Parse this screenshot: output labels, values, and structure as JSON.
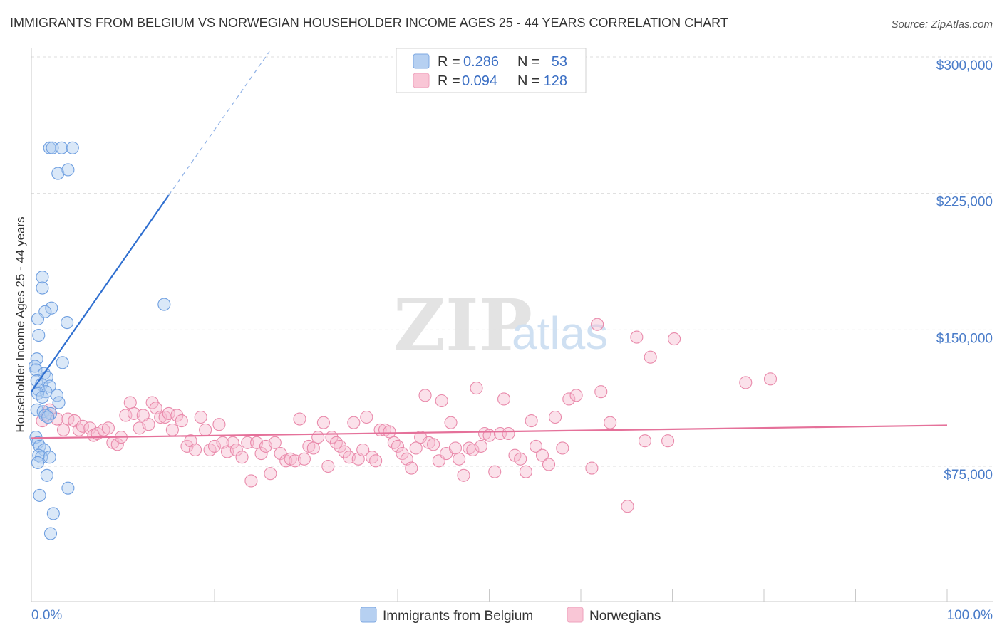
{
  "header": {
    "title": "IMMIGRANTS FROM BELGIUM VS NORWEGIAN HOUSEHOLDER INCOME AGES 25 - 44 YEARS CORRELATION CHART",
    "source": "Source: ZipAtlas.com"
  },
  "watermark": {
    "zip": "ZIP",
    "atlas": "atlas"
  },
  "legend": {
    "belgium": {
      "r_label": "R = ",
      "r_value": "0.286",
      "n_label": "N = ",
      "n_value": "53",
      "color": "#9dbfe8"
    },
    "norwegian": {
      "r_label": "R = ",
      "r_value": "0.094",
      "n_label": "N = ",
      "n_value": "128",
      "color": "#f4a8c2"
    }
  },
  "bottom_legend": {
    "belgium_label": "Immigrants from Belgium",
    "norwegian_label": "Norwegians"
  },
  "chart_data": {
    "type": "scatter",
    "title": "IMMIGRANTS FROM BELGIUM VS NORWEGIAN HOUSEHOLDER INCOME AGES 25 - 44 YEARS CORRELATION CHART",
    "xlabel": "",
    "ylabel": "Householder Income Ages 25 - 44 years",
    "xlim": [
      0,
      100
    ],
    "ylim": [
      10000,
      315000
    ],
    "x_tick_labels": [
      "0.0%",
      "100.0%"
    ],
    "y_ticks": [
      75000,
      150000,
      225000,
      300000
    ],
    "y_tick_labels": [
      "$75,000",
      "$150,000",
      "$225,000",
      "$300,000"
    ],
    "grid": true,
    "series": [
      {
        "name": "Immigrants from Belgium",
        "color": "#6f9fe0",
        "fill": "#aecbef",
        "R": 0.286,
        "N": 53,
        "trend": {
          "x0": 0.0,
          "y0": 116000,
          "x1": 15.0,
          "y1": 224000,
          "dash_to_x": 26.0,
          "dash_to_y": 303000
        },
        "points": [
          [
            2.0,
            250000
          ],
          [
            2.3,
            250000
          ],
          [
            3.3,
            250000
          ],
          [
            4.5,
            250000
          ],
          [
            2.9,
            236000
          ],
          [
            4.0,
            238000
          ],
          [
            1.2,
            179000
          ],
          [
            1.2,
            173000
          ],
          [
            2.2,
            162000
          ],
          [
            1.5,
            160000
          ],
          [
            0.7,
            156000
          ],
          [
            3.9,
            154000
          ],
          [
            0.8,
            147000
          ],
          [
            0.6,
            134000
          ],
          [
            3.4,
            132000
          ],
          [
            0.4,
            130000
          ],
          [
            0.5,
            128000
          ],
          [
            1.4,
            126000
          ],
          [
            1.7,
            124000
          ],
          [
            0.6,
            122000
          ],
          [
            1.1,
            120000
          ],
          [
            2.0,
            119000
          ],
          [
            0.8,
            117000
          ],
          [
            1.6,
            116000
          ],
          [
            0.7,
            115000
          ],
          [
            2.8,
            114000
          ],
          [
            1.2,
            113000
          ],
          [
            3.0,
            110000
          ],
          [
            0.6,
            106000
          ],
          [
            1.3,
            105000
          ],
          [
            2.1,
            104000
          ],
          [
            1.5,
            103000
          ],
          [
            1.8,
            102000
          ],
          [
            0.5,
            91000
          ],
          [
            0.7,
            88000
          ],
          [
            0.9,
            86000
          ],
          [
            1.4,
            84000
          ],
          [
            0.8,
            81000
          ],
          [
            1.1,
            80000
          ],
          [
            2.0,
            80000
          ],
          [
            0.7,
            77000
          ],
          [
            1.7,
            70000
          ],
          [
            4.0,
            63000
          ],
          [
            0.9,
            59000
          ],
          [
            2.4,
            49000
          ],
          [
            2.1,
            38000
          ],
          [
            14.5,
            164000
          ]
        ]
      },
      {
        "name": "Norwegians",
        "color": "#e98aab",
        "fill": "#f7bdd0",
        "R": 0.094,
        "N": 128,
        "trend": {
          "x0": 0.0,
          "y0": 90500,
          "x1": 100.0,
          "y1": 97500
        },
        "points": [
          [
            1.2,
            100000
          ],
          [
            1.8,
            103000
          ],
          [
            2.0,
            106000
          ],
          [
            2.8,
            101000
          ],
          [
            3.5,
            95000
          ],
          [
            4.0,
            101000
          ],
          [
            4.7,
            100000
          ],
          [
            5.2,
            95000
          ],
          [
            5.6,
            97000
          ],
          [
            6.4,
            96000
          ],
          [
            6.8,
            92000
          ],
          [
            7.2,
            93000
          ],
          [
            7.9,
            95000
          ],
          [
            8.4,
            96000
          ],
          [
            8.9,
            88000
          ],
          [
            9.4,
            87000
          ],
          [
            9.8,
            91000
          ],
          [
            10.3,
            103000
          ],
          [
            10.8,
            110000
          ],
          [
            11.2,
            104000
          ],
          [
            11.8,
            96000
          ],
          [
            12.2,
            103000
          ],
          [
            12.8,
            98000
          ],
          [
            13.2,
            110000
          ],
          [
            13.6,
            107000
          ],
          [
            14.1,
            102000
          ],
          [
            14.6,
            102000
          ],
          [
            15.0,
            104000
          ],
          [
            15.4,
            95000
          ],
          [
            15.9,
            103000
          ],
          [
            16.4,
            100000
          ],
          [
            17.0,
            86000
          ],
          [
            17.4,
            89000
          ],
          [
            17.9,
            84000
          ],
          [
            18.5,
            102000
          ],
          [
            19.0,
            95000
          ],
          [
            19.5,
            84000
          ],
          [
            20.0,
            86000
          ],
          [
            20.5,
            98000
          ],
          [
            20.9,
            88000
          ],
          [
            21.4,
            83000
          ],
          [
            22.0,
            88000
          ],
          [
            22.4,
            84000
          ],
          [
            23.0,
            80000
          ],
          [
            23.6,
            88000
          ],
          [
            24.0,
            67000
          ],
          [
            24.6,
            88000
          ],
          [
            25.1,
            82000
          ],
          [
            25.6,
            86000
          ],
          [
            26.1,
            71000
          ],
          [
            26.6,
            88000
          ],
          [
            27.2,
            82000
          ],
          [
            27.8,
            78000
          ],
          [
            28.3,
            79000
          ],
          [
            28.8,
            78000
          ],
          [
            29.3,
            101000
          ],
          [
            29.8,
            79000
          ],
          [
            30.3,
            86000
          ],
          [
            30.8,
            85000
          ],
          [
            31.3,
            91000
          ],
          [
            31.9,
            99000
          ],
          [
            32.4,
            75000
          ],
          [
            32.8,
            91000
          ],
          [
            33.3,
            88000
          ],
          [
            33.7,
            86000
          ],
          [
            34.2,
            83000
          ],
          [
            34.7,
            80000
          ],
          [
            35.2,
            99000
          ],
          [
            35.7,
            79000
          ],
          [
            36.2,
            84000
          ],
          [
            36.6,
            102000
          ],
          [
            37.2,
            80000
          ],
          [
            37.6,
            78000
          ],
          [
            38.1,
            95000
          ],
          [
            38.6,
            95000
          ],
          [
            39.1,
            94000
          ],
          [
            39.6,
            88000
          ],
          [
            40.0,
            86000
          ],
          [
            40.5,
            82000
          ],
          [
            41.0,
            79000
          ],
          [
            41.5,
            74000
          ],
          [
            42.0,
            85000
          ],
          [
            42.5,
            91000
          ],
          [
            43.0,
            114000
          ],
          [
            43.4,
            88000
          ],
          [
            43.9,
            87000
          ],
          [
            44.5,
            78000
          ],
          [
            44.8,
            111000
          ],
          [
            45.3,
            82000
          ],
          [
            45.8,
            99000
          ],
          [
            46.3,
            85000
          ],
          [
            46.7,
            79000
          ],
          [
            47.2,
            70000
          ],
          [
            47.8,
            85000
          ],
          [
            48.2,
            84000
          ],
          [
            48.6,
            118000
          ],
          [
            49.1,
            86000
          ],
          [
            49.5,
            93000
          ],
          [
            50.0,
            92000
          ],
          [
            50.6,
            72000
          ],
          [
            51.2,
            93000
          ],
          [
            51.6,
            112000
          ],
          [
            52.1,
            93000
          ],
          [
            52.8,
            81000
          ],
          [
            53.4,
            79000
          ],
          [
            54.0,
            72000
          ],
          [
            54.6,
            100000
          ],
          [
            55.1,
            86000
          ],
          [
            55.8,
            81000
          ],
          [
            56.5,
            76000
          ],
          [
            57.2,
            102000
          ],
          [
            58.0,
            85000
          ],
          [
            58.7,
            112000
          ],
          [
            59.5,
            114000
          ],
          [
            61.2,
            74000
          ],
          [
            61.8,
            153000
          ],
          [
            62.2,
            116000
          ],
          [
            63.2,
            99000
          ],
          [
            65.1,
            53000
          ],
          [
            66.1,
            146000
          ],
          [
            67.0,
            89000
          ],
          [
            69.5,
            89000
          ],
          [
            67.6,
            135000
          ],
          [
            70.2,
            145000
          ],
          [
            78.0,
            121000
          ],
          [
            80.7,
            123000
          ]
        ]
      }
    ]
  }
}
